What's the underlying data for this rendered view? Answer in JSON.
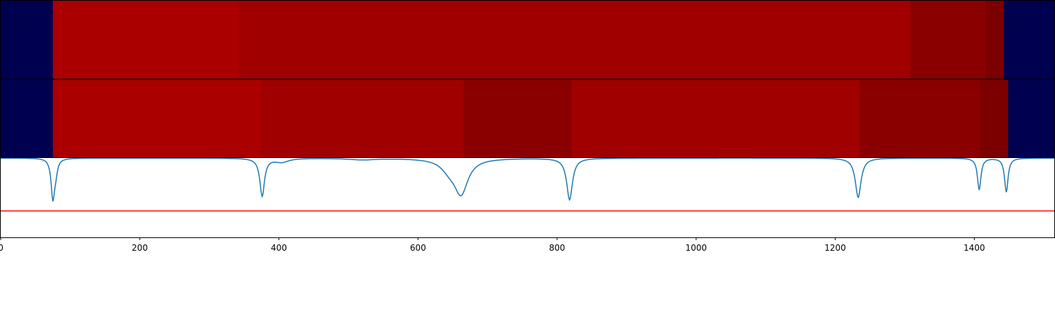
{
  "chart_data": [
    {
      "type": "heatmap",
      "xlim": [
        0,
        1515
      ],
      "background_color": "#000050",
      "segments": [
        {
          "x0": 75,
          "x1": 343,
          "color": "#AA0000"
        },
        {
          "x0": 343,
          "x1": 1308,
          "color": "#A00000"
        },
        {
          "x0": 1308,
          "x1": 1416,
          "color": "#8A0000"
        },
        {
          "x0": 1416,
          "x1": 1442,
          "color": "#7C0000"
        }
      ]
    },
    {
      "type": "heatmap",
      "xlim": [
        0,
        1515
      ],
      "background_color": "#000050",
      "segments": [
        {
          "x0": 75,
          "x1": 374,
          "color": "#AA0000"
        },
        {
          "x0": 374,
          "x1": 666,
          "color": "#A00000"
        },
        {
          "x0": 666,
          "x1": 821,
          "color": "#8A0000"
        },
        {
          "x0": 821,
          "x1": 1235,
          "color": "#A00000"
        },
        {
          "x0": 1235,
          "x1": 1408,
          "color": "#8A0000"
        },
        {
          "x0": 1408,
          "x1": 1448,
          "color": "#7C0000"
        }
      ]
    },
    {
      "type": "line",
      "xlim": [
        0,
        1515
      ],
      "ylim": [
        -0.05,
        1.0
      ],
      "line_color": "#1f77b4",
      "threshold_color": "#ff0000",
      "threshold": 0.3,
      "baseline": 1.0,
      "dips": [
        {
          "center": 75,
          "depth": 0.52,
          "width": 3
        },
        {
          "center": 79,
          "depth": 0.15,
          "width": 3
        },
        {
          "center": 376,
          "depth": 0.5,
          "width": 4
        },
        {
          "center": 404,
          "depth": 0.05,
          "width": 12
        },
        {
          "center": 520,
          "depth": 0.02,
          "width": 25
        },
        {
          "center": 662,
          "depth": 0.45,
          "width": 12
        },
        {
          "center": 645,
          "depth": 0.12,
          "width": 14
        },
        {
          "center": 818,
          "depth": 0.55,
          "width": 5
        },
        {
          "center": 1233,
          "depth": 0.52,
          "width": 5
        },
        {
          "center": 1407,
          "depth": 0.42,
          "width": 3
        },
        {
          "center": 1446,
          "depth": 0.45,
          "width": 3
        }
      ],
      "x_ticks": [
        "0",
        "200",
        "400",
        "600",
        "800",
        "1000",
        "1200",
        "1400"
      ],
      "x_tick_values": [
        0,
        200,
        400,
        600,
        800,
        1000,
        1200,
        1400
      ]
    }
  ]
}
